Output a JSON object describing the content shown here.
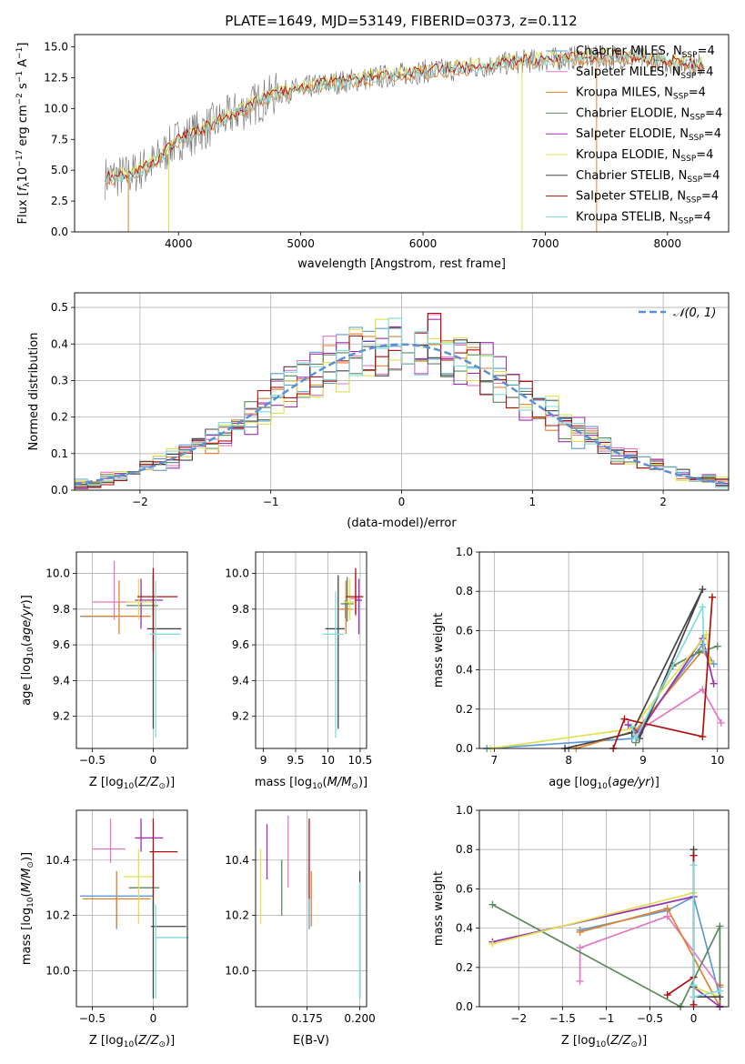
{
  "figure_title": "PLATE=1649, MJD=53149, FIBERID=0373, z=0.112",
  "colors": {
    "Chabrier MILES": "#5b9bd5",
    "Salpeter MILES": "#e377c2",
    "Kroupa MILES": "#e0822e",
    "Chabrier ELODIE": "#5c8a5c",
    "Salpeter ELODIE": "#9b30b0",
    "Kroupa ELODIE": "#e0e050",
    "Chabrier STELIB": "#444444",
    "Salpeter STELIB": "#b01010",
    "Kroupa STELIB": "#7fdcdc",
    "gaussian": "#5b8fd6"
  },
  "chart_data": [
    {
      "id": "spectrum",
      "type": "line",
      "title": "PLATE=1649, MJD=53149, FIBERID=0373, z=0.112",
      "xlabel": "wavelength [Angstrom, rest frame]",
      "ylabel": "Flux [f_λ 10^-17 erg cm^-2 s^-1 A^-1]",
      "xlim": [
        3150,
        8500
      ],
      "ylim": [
        0,
        16
      ],
      "xticks": [
        4000,
        5000,
        6000,
        7000,
        8000
      ],
      "yticks": [
        0.0,
        2.5,
        5.0,
        7.5,
        10.0,
        12.5,
        15.0
      ],
      "legend_position": "upper-right",
      "legend": [
        "Chabrier MILES, N_SSP=4",
        "Salpeter MILES, N_SSP=4",
        "Kroupa MILES, N_SSP=4",
        "Chabrier ELODIE, N_SSP=4",
        "Salpeter ELODIE, N_SSP=4",
        "Kroupa ELODIE, N_SSP=4",
        "Chabrier STELIB, N_SSP=4",
        "Salpeter STELIB, N_SSP=4",
        "Kroupa STELIB, N_SSP=4"
      ],
      "continuum_x": [
        3400,
        3600,
        3800,
        4000,
        4200,
        4500,
        4800,
        5200,
        5600,
        6000,
        6400,
        6800,
        7200,
        7600,
        8000,
        8300
      ],
      "continuum_y": [
        4.4,
        4.6,
        5.6,
        7.5,
        8.3,
        9.8,
        11.2,
        12.0,
        12.5,
        13.0,
        13.3,
        13.8,
        14.1,
        14.2,
        13.8,
        13.5
      ],
      "grid": false
    },
    {
      "id": "residuals",
      "type": "histogram",
      "xlabel": "(data-model)/error",
      "ylabel": "Normed distribution",
      "xlim": [
        -2.5,
        2.5
      ],
      "ylim": [
        0,
        0.54
      ],
      "xticks": [
        -2,
        -1,
        0,
        1,
        2
      ],
      "yticks": [
        0.0,
        0.1,
        0.2,
        0.3,
        0.4,
        0.5
      ],
      "legend": [
        "N(0, 1)"
      ],
      "legend_position": "upper-right",
      "bin_width": 0.1,
      "grid": true
    },
    {
      "id": "age_vs_Z",
      "type": "errorbar",
      "xlabel": "Z [log10(Z/Z⊙)]",
      "ylabel": "age [log10(age/yr)]",
      "xlim": [
        -0.63,
        0.28
      ],
      "ylim": [
        9.02,
        10.12
      ],
      "xticks": [
        -0.5,
        0.0
      ],
      "yticks": [
        9.2,
        9.4,
        9.6,
        9.8,
        10.0
      ],
      "grid": true,
      "points": [
        {
          "series": "Chabrier MILES",
          "x": -0.3,
          "y": 9.76,
          "xerr": [
            0.3,
            0.0
          ],
          "yerr": [
            0.0,
            0.0
          ]
        },
        {
          "series": "Salpeter MILES",
          "x": -0.32,
          "y": 9.84,
          "xerr": [
            0.18,
            0.15
          ],
          "yerr": [
            0.1,
            0.23
          ]
        },
        {
          "series": "Kroupa MILES",
          "x": -0.28,
          "y": 9.76,
          "xerr": [
            0.3,
            0.26
          ],
          "yerr": [
            0.1,
            0.2
          ]
        },
        {
          "series": "Chabrier ELODIE",
          "x": 0.0,
          "y": 9.82,
          "xerr": [
            0.22,
            0.04
          ],
          "yerr": [
            0.06,
            0.17
          ]
        },
        {
          "series": "Salpeter ELODIE",
          "x": -0.1,
          "y": 9.85,
          "xerr": [
            0.05,
            0.18
          ],
          "yerr": [
            0.16,
            0.12
          ]
        },
        {
          "series": "Kroupa ELODIE",
          "x": -0.12,
          "y": 9.84,
          "xerr": [
            0.1,
            0.12
          ],
          "yerr": [
            0.1,
            0.13
          ]
        },
        {
          "series": "Chabrier STELIB",
          "x": 0.0,
          "y": 9.69,
          "xerr": [
            0.05,
            0.23
          ],
          "yerr": [
            0.56,
            0.3
          ]
        },
        {
          "series": "Salpeter STELIB",
          "x": 0.0,
          "y": 9.87,
          "xerr": [
            0.13,
            0.2
          ],
          "yerr": [
            0.31,
            0.16
          ]
        },
        {
          "series": "Kroupa STELIB",
          "x": 0.02,
          "y": 9.66,
          "xerr": [
            0.05,
            0.2
          ],
          "yerr": [
            0.58,
            0.3
          ]
        }
      ]
    },
    {
      "id": "age_vs_mass",
      "type": "errorbar",
      "xlabel": "mass [log10(M/M⊙)]",
      "ylabel": "",
      "xlim": [
        8.88,
        10.6
      ],
      "ylim": [
        9.02,
        10.12
      ],
      "xticks": [
        9.0,
        9.5,
        10.0,
        10.5
      ],
      "yticks": [
        9.2,
        9.4,
        9.6,
        9.8,
        10.0
      ],
      "grid": true,
      "points": [
        {
          "series": "Chabrier MILES",
          "x": 10.27,
          "y": 9.8,
          "xerr": [
            0.05,
            0.05
          ],
          "yerr": [
            0.05,
            0.05
          ]
        },
        {
          "series": "Salpeter MILES",
          "x": 10.43,
          "y": 9.86,
          "xerr": [
            0.1,
            0.05
          ],
          "yerr": [
            0.1,
            0.14
          ]
        },
        {
          "series": "Kroupa MILES",
          "x": 10.28,
          "y": 9.8,
          "xerr": [
            0.1,
            0.1
          ],
          "yerr": [
            0.14,
            0.16
          ]
        },
        {
          "series": "Chabrier ELODIE",
          "x": 10.3,
          "y": 9.83,
          "xerr": [
            0.1,
            0.1
          ],
          "yerr": [
            0.1,
            0.15
          ]
        },
        {
          "series": "Salpeter ELODIE",
          "x": 10.48,
          "y": 9.85,
          "xerr": [
            0.05,
            0.05
          ],
          "yerr": [
            0.19,
            0.12
          ]
        },
        {
          "series": "Kroupa ELODIE",
          "x": 10.34,
          "y": 9.84,
          "xerr": [
            0.1,
            0.1
          ],
          "yerr": [
            0.1,
            0.13
          ]
        },
        {
          "series": "Chabrier STELIB",
          "x": 10.16,
          "y": 9.69,
          "xerr": [
            0.2,
            0.1
          ],
          "yerr": [
            0.56,
            0.3
          ]
        },
        {
          "series": "Salpeter STELIB",
          "x": 10.43,
          "y": 9.87,
          "xerr": [
            0.15,
            0.12
          ],
          "yerr": [
            0.1,
            0.16
          ]
        },
        {
          "series": "Kroupa STELIB",
          "x": 10.12,
          "y": 9.66,
          "xerr": [
            0.2,
            0.13
          ],
          "yerr": [
            0.58,
            0.24
          ]
        }
      ]
    },
    {
      "id": "massweight_vs_age",
      "type": "line",
      "xlabel": "age  [log10(age/yr)]",
      "ylabel": "mass weight",
      "xlim": [
        6.8,
        10.15
      ],
      "ylim": [
        0,
        1.0
      ],
      "xticks": [
        7,
        8,
        9,
        10
      ],
      "yticks": [
        0.0,
        0.2,
        0.4,
        0.6,
        0.8,
        1.0
      ],
      "grid": true,
      "series": [
        {
          "name": "Chabrier MILES",
          "x": [
            6.9,
            8.85,
            9.8,
            9.95
          ],
          "y": [
            0.0,
            0.05,
            0.53,
            0.43
          ]
        },
        {
          "name": "Salpeter MILES",
          "x": [
            8.8,
            8.9,
            9.8,
            10.05
          ],
          "y": [
            0.12,
            0.08,
            0.3,
            0.13
          ]
        },
        {
          "name": "Kroupa MILES",
          "x": [
            8.1,
            8.9,
            9.8,
            9.9
          ],
          "y": [
            0.0,
            0.09,
            0.5,
            0.44
          ]
        },
        {
          "name": "Chabrier ELODIE",
          "x": [
            8.9,
            9.4,
            9.75,
            10.0
          ],
          "y": [
            0.03,
            0.42,
            0.49,
            0.52
          ]
        },
        {
          "name": "Salpeter ELODIE",
          "x": [
            8.8,
            8.95,
            9.8,
            9.95
          ],
          "y": [
            0.12,
            0.08,
            0.56,
            0.33
          ]
        },
        {
          "name": "Kroupa ELODIE",
          "x": [
            6.95,
            8.85,
            9.85,
            9.9
          ],
          "y": [
            0.0,
            0.1,
            0.58,
            0.44
          ]
        },
        {
          "name": "Chabrier STELIB",
          "x": [
            7.95,
            8.85,
            9.8,
            8.95
          ],
          "y": [
            0.0,
            0.08,
            0.81,
            0.05
          ]
        },
        {
          "name": "Salpeter STELIB",
          "x": [
            8.6,
            8.75,
            9.8,
            9.93
          ],
          "y": [
            0.0,
            0.15,
            0.06,
            0.77
          ]
        },
        {
          "name": "Kroupa STELIB",
          "x": [
            8.85,
            8.9,
            9.8,
            9.82
          ],
          "y": [
            0.11,
            0.05,
            0.72,
            0.5
          ]
        }
      ]
    },
    {
      "id": "mass_vs_Z",
      "type": "errorbar",
      "xlabel": "Z [log10(Z/Z⊙)]",
      "ylabel": "mass [log10(M/M⊙)]",
      "xlim": [
        -0.63,
        0.28
      ],
      "ylim": [
        9.87,
        10.58
      ],
      "xticks": [
        -0.5,
        0.0
      ],
      "yticks": [
        10.0,
        10.2,
        10.4
      ],
      "grid": true,
      "points": [
        {
          "series": "Chabrier MILES",
          "x": -0.3,
          "y": 10.27,
          "xerr": [
            0.3,
            0.3
          ],
          "yerr": [
            0.12,
            0.0
          ]
        },
        {
          "series": "Salpeter MILES",
          "x": -0.35,
          "y": 10.44,
          "xerr": [
            0.15,
            0.12
          ],
          "yerr": [
            0.05,
            0.11
          ]
        },
        {
          "series": "Kroupa MILES",
          "x": -0.3,
          "y": 10.26,
          "xerr": [
            0.28,
            0.28
          ],
          "yerr": [
            0.1,
            0.1
          ]
        },
        {
          "series": "Chabrier ELODIE",
          "x": 0.0,
          "y": 10.3,
          "xerr": [
            0.2,
            0.05
          ],
          "yerr": [
            0.1,
            0.14
          ]
        },
        {
          "series": "Salpeter ELODIE",
          "x": -0.1,
          "y": 10.48,
          "xerr": [
            0.05,
            0.18
          ],
          "yerr": [
            0.05,
            0.07
          ]
        },
        {
          "series": "Kroupa ELODIE",
          "x": -0.12,
          "y": 10.34,
          "xerr": [
            0.12,
            0.12
          ],
          "yerr": [
            0.17,
            0.1
          ]
        },
        {
          "series": "Chabrier STELIB",
          "x": 0.0,
          "y": 10.16,
          "xerr": [
            0.02,
            0.27
          ],
          "yerr": [
            0.26,
            0.1
          ]
        },
        {
          "series": "Salpeter STELIB",
          "x": 0.0,
          "y": 10.43,
          "xerr": [
            0.03,
            0.2
          ],
          "yerr": [
            0.17,
            0.12
          ]
        },
        {
          "series": "Kroupa STELIB",
          "x": 0.02,
          "y": 10.12,
          "xerr": [
            0.0,
            0.27
          ],
          "yerr": [
            0.22,
            0.12
          ]
        }
      ]
    },
    {
      "id": "mass_vs_ebv",
      "type": "errorbar",
      "xlabel": "E(B-V)",
      "ylabel": "",
      "xlim": [
        0.1506,
        0.2032
      ],
      "ylim": [
        9.87,
        10.58
      ],
      "xticks": [
        0.175,
        0.2
      ],
      "tick_labels": [
        "0.175",
        "0.200"
      ],
      "yticks": [
        10.0,
        10.2,
        10.4
      ],
      "grid": true,
      "points": [
        {
          "series": "Chabrier MILES",
          "x": 0.176,
          "y": 10.27,
          "xerr": [
            0,
            0
          ],
          "yerr": [
            0.12,
            0.0
          ]
        },
        {
          "series": "Salpeter MILES",
          "x": 0.166,
          "y": 10.44,
          "xerr": [
            0,
            0
          ],
          "yerr": [
            0.14,
            0.12
          ]
        },
        {
          "series": "Kroupa MILES",
          "x": 0.177,
          "y": 10.26,
          "xerr": [
            0,
            0
          ],
          "yerr": [
            0.1,
            0.1
          ]
        },
        {
          "series": "Chabrier ELODIE",
          "x": 0.163,
          "y": 10.3,
          "xerr": [
            0,
            0
          ],
          "yerr": [
            0.1,
            0.1
          ]
        },
        {
          "series": "Salpeter ELODIE",
          "x": 0.156,
          "y": 10.48,
          "xerr": [
            0,
            0
          ],
          "yerr": [
            0.15,
            0.05
          ]
        },
        {
          "series": "Kroupa ELODIE",
          "x": 0.153,
          "y": 10.34,
          "xerr": [
            0,
            0
          ],
          "yerr": [
            0.17,
            0.1
          ]
        },
        {
          "series": "Chabrier STELIB",
          "x": 0.2,
          "y": 10.16,
          "xerr": [
            0,
            0
          ],
          "yerr": [
            0.26,
            0.2
          ]
        },
        {
          "series": "Salpeter STELIB",
          "x": 0.176,
          "y": 10.43,
          "xerr": [
            0,
            0
          ],
          "yerr": [
            0.17,
            0.12
          ]
        },
        {
          "series": "Kroupa STELIB",
          "x": 0.2,
          "y": 10.12,
          "xerr": [
            0,
            0
          ],
          "yerr": [
            0.22,
            0.2
          ]
        }
      ]
    },
    {
      "id": "massweight_vs_Z",
      "type": "line",
      "xlabel": "Z [log10(Z/Z⊙)]",
      "ylabel": "mass weight",
      "xlim": [
        -2.45,
        0.4
      ],
      "ylim": [
        0,
        1.0
      ],
      "xticks": [
        -2.0,
        -1.5,
        -1.0,
        -0.5,
        0.0
      ],
      "yticks": [
        0.0,
        0.2,
        0.4,
        0.6,
        0.8,
        1.0
      ],
      "grid": true,
      "series": [
        {
          "name": "Chabrier MILES",
          "x": [
            -1.3,
            -0.3,
            0.0,
            0.3
          ],
          "y": [
            0.39,
            0.49,
            0.56,
            0.05
          ]
        },
        {
          "name": "Salpeter MILES",
          "x": [
            -1.3,
            -1.3,
            -0.3,
            0.3
          ],
          "y": [
            0.13,
            0.3,
            0.46,
            0.1
          ]
        },
        {
          "name": "Kroupa MILES",
          "x": [
            -1.3,
            -0.3,
            0.3,
            0.3
          ],
          "y": [
            0.38,
            0.5,
            0.0,
            0.11
          ]
        },
        {
          "name": "Chabrier ELODIE",
          "x": [
            -2.3,
            -0.15,
            0.3,
            0.3
          ],
          "y": [
            0.52,
            0.0,
            0.41,
            0.0
          ]
        },
        {
          "name": "Salpeter ELODIE",
          "x": [
            -2.3,
            0.0,
            0.0,
            0.3
          ],
          "y": [
            0.33,
            0.56,
            0.1,
            0.0
          ]
        },
        {
          "name": "Kroupa ELODIE",
          "x": [
            -2.3,
            0.0,
            0.0,
            0.3
          ],
          "y": [
            0.32,
            0.58,
            0.1,
            0.05
          ]
        },
        {
          "name": "Chabrier STELIB",
          "x": [
            0.0,
            0.0,
            0.0,
            0.3
          ],
          "y": [
            0.8,
            0.1,
            0.05,
            0.05
          ]
        },
        {
          "name": "Salpeter STELIB",
          "x": [
            -0.3,
            0.0,
            0.0,
            0.0
          ],
          "y": [
            0.06,
            0.15,
            0.77,
            0.01
          ]
        },
        {
          "name": "Kroupa STELIB",
          "x": [
            0.0,
            0.0,
            0.0,
            0.3
          ],
          "y": [
            0.72,
            0.11,
            0.05,
            0.08
          ]
        }
      ]
    }
  ]
}
